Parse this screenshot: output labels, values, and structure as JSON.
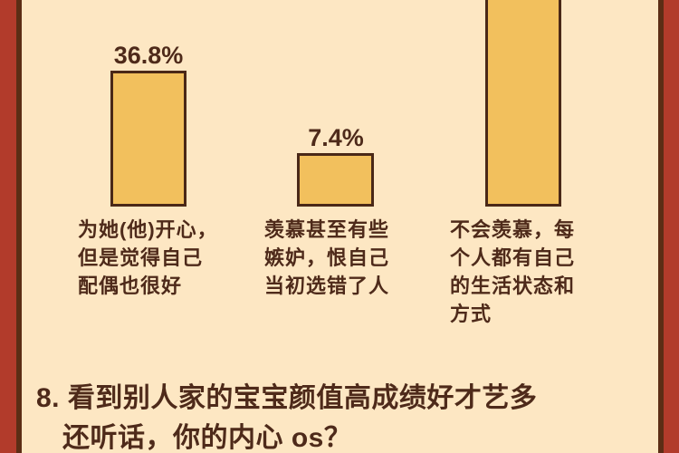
{
  "colors": {
    "background": "#fde7c3",
    "side_stripe_red": "#b23b2b",
    "stripe_rule_brown": "#5c2d15",
    "bar_fill": "#f2c05d",
    "bar_border": "#4a2817",
    "text_brown": "#4e2a1a"
  },
  "chart_data": {
    "type": "bar",
    "categories": [
      "为她(他)开心，但是觉得自己配偶也很好",
      "羡慕甚至有些嫉妒，恨自己当初选错了人",
      "不会羡慕，每个人都有自己的生活状态和方式"
    ],
    "values": [
      36.8,
      7.4,
      null
    ],
    "value_labels": [
      "36.8%",
      "7.4%",
      ""
    ],
    "title": "",
    "xlabel": "",
    "ylabel": "",
    "legend": "off",
    "grid": "off",
    "layout_hints": "third bar is tallest and extends past the top edge of the frame, so its value label is not visible; all bars share one baseline"
  },
  "bars": [
    {
      "value_label": "36.8%",
      "label_lines": [
        "为她(他)开心，",
        "但是觉得自己",
        "配偶也很好"
      ]
    },
    {
      "value_label": "7.4%",
      "label_lines": [
        "羡慕甚至有些",
        "嫉妒，恨自己",
        "当初选错了人"
      ]
    },
    {
      "value_label": "",
      "label_lines": [
        "不会羡慕，每",
        "个人都有自己",
        "的生活状态和",
        "方式"
      ]
    }
  ],
  "question": {
    "line1": "8. 看到别人家的宝宝颜值高成绩好才艺多",
    "line2": "还听话，你的内心 os？"
  }
}
